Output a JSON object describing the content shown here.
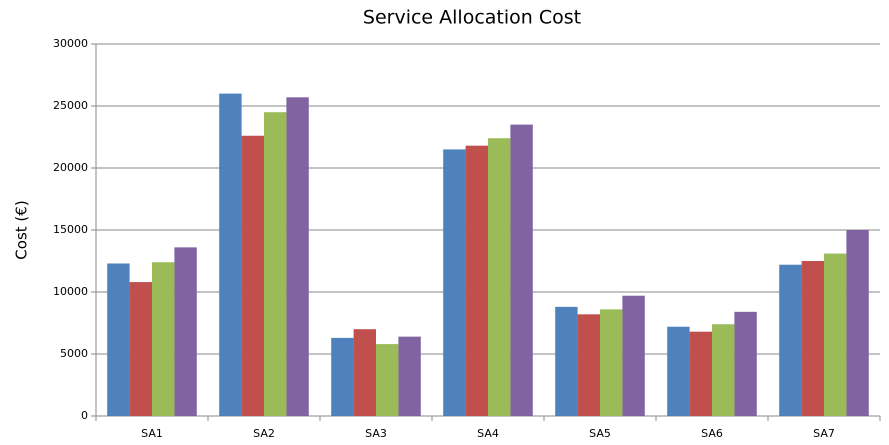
{
  "chart_data": {
    "type": "bar",
    "title": "Service Allocation Cost",
    "ylabel": "Cost (€)",
    "categories": [
      "SA1",
      "SA2",
      "SA3",
      "SA4",
      "SA5",
      "SA6",
      "SA7"
    ],
    "series": [
      {
        "color": "#4f81bd",
        "values": [
          12300,
          26000,
          6300,
          21500,
          8800,
          7200,
          12200
        ]
      },
      {
        "color": "#c0504d",
        "values": [
          10800,
          22600,
          7000,
          21800,
          8200,
          6800,
          12500
        ]
      },
      {
        "color": "#9bbb59",
        "values": [
          12400,
          24500,
          5800,
          22400,
          8600,
          7400,
          13100
        ]
      },
      {
        "color": "#8064a2",
        "values": [
          13600,
          25700,
          6400,
          23500,
          9700,
          8400,
          15000
        ]
      }
    ],
    "ylim": [
      0,
      30000
    ],
    "yticks": [
      0,
      5000,
      10000,
      15000,
      20000,
      25000,
      30000
    ],
    "grid": true
  }
}
